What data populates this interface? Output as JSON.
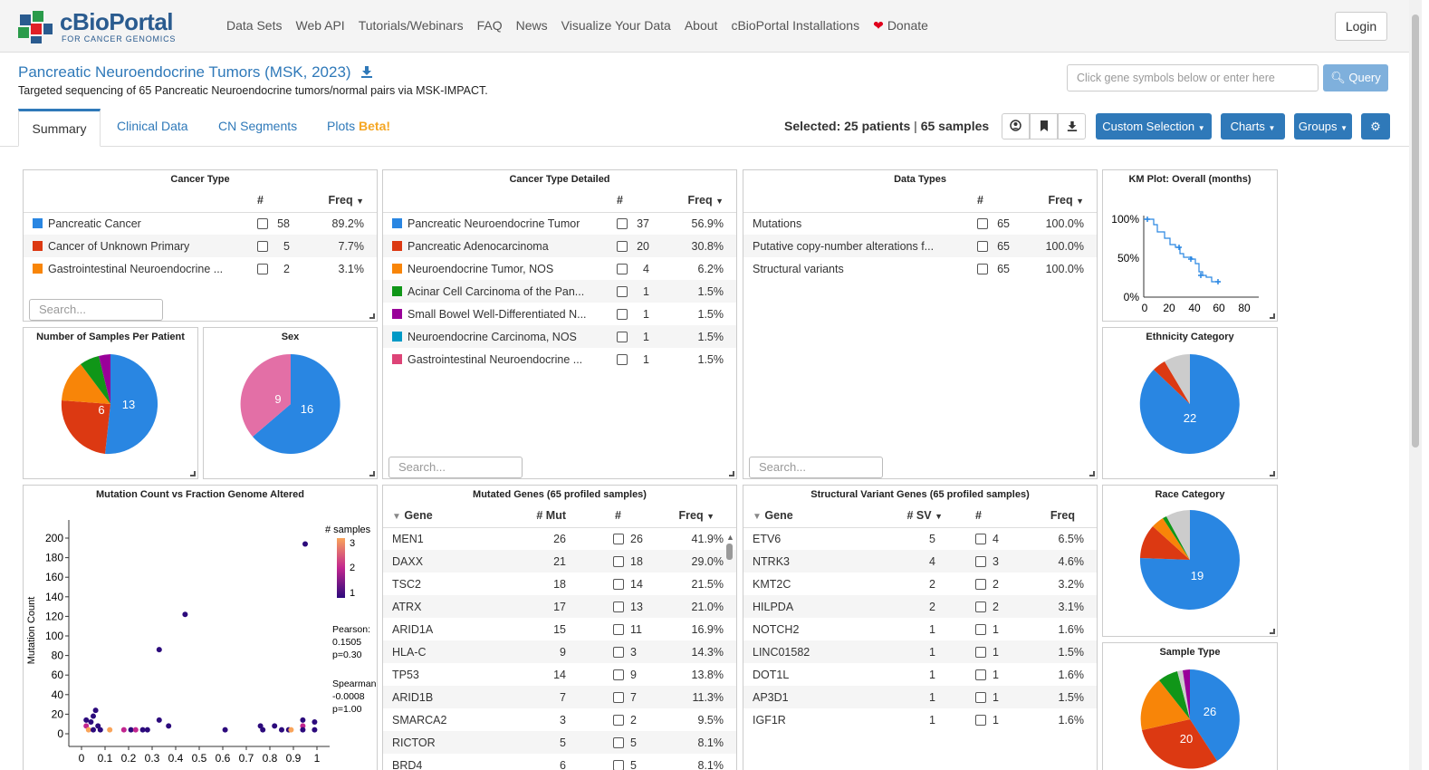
{
  "header": {
    "logo_main": "cBioPortal",
    "logo_sub": "FOR CANCER GENOMICS",
    "nav": [
      "Data Sets",
      "Web API",
      "Tutorials/Webinars",
      "FAQ",
      "News",
      "Visualize Your Data",
      "About",
      "cBioPortal Installations",
      "Donate"
    ],
    "login": "Login"
  },
  "study": {
    "title": "Pancreatic Neuroendocrine Tumors (MSK, 2023)",
    "description": "Targeted sequencing of 65 Pancreatic Neuroendocrine tumors/normal pairs via MSK-IMPACT.",
    "query_placeholder": "Click gene symbols below or enter here",
    "query_button": "Query"
  },
  "tabs": {
    "summary": "Summary",
    "clinical": "Clinical Data",
    "cn": "CN Segments",
    "plots": "Plots",
    "beta": "Beta!"
  },
  "selection": {
    "patients": "Selected: 25 patients",
    "sep": "|",
    "samples": "65 samples"
  },
  "buttons": {
    "custom": "Custom Selection",
    "charts": "Charts",
    "groups": "Groups"
  },
  "colors": {
    "blue": "#2986e2",
    "red": "#dc3912",
    "orange": "#f88508",
    "green": "#109618",
    "purple": "#990099",
    "teal": "#0099c6",
    "pink": "#dd4477",
    "grey": "#cccccc",
    "sexpink": "#e36fa6",
    "link": "#2f79b9"
  },
  "cancer_type": {
    "title": "Cancer Type",
    "col_n": "#",
    "col_freq": "Freq",
    "rows": [
      {
        "label": "Pancreatic Cancer",
        "n": "58",
        "freq": "89.2%",
        "color": "#2986e2"
      },
      {
        "label": "Cancer of Unknown Primary",
        "n": "5",
        "freq": "7.7%",
        "color": "#dc3912"
      },
      {
        "label": "Gastrointestinal Neuroendocrine ...",
        "n": "2",
        "freq": "3.1%",
        "color": "#f88508"
      }
    ],
    "search": "Search..."
  },
  "cancer_type_detailed": {
    "title": "Cancer Type Detailed",
    "col_n": "#",
    "col_freq": "Freq",
    "rows": [
      {
        "label": "Pancreatic Neuroendocrine Tumor",
        "n": "37",
        "freq": "56.9%",
        "color": "#2986e2"
      },
      {
        "label": "Pancreatic Adenocarcinoma",
        "n": "20",
        "freq": "30.8%",
        "color": "#dc3912"
      },
      {
        "label": "Neuroendocrine Tumor, NOS",
        "n": "4",
        "freq": "6.2%",
        "color": "#f88508"
      },
      {
        "label": "Acinar Cell Carcinoma of the Pan...",
        "n": "1",
        "freq": "1.5%",
        "color": "#109618"
      },
      {
        "label": "Small Bowel Well-Differentiated N...",
        "n": "1",
        "freq": "1.5%",
        "color": "#990099"
      },
      {
        "label": "Neuroendocrine Carcinoma, NOS",
        "n": "1",
        "freq": "1.5%",
        "color": "#0099c6"
      },
      {
        "label": "Gastrointestinal Neuroendocrine ...",
        "n": "1",
        "freq": "1.5%",
        "color": "#dd4477"
      }
    ],
    "search": "Search..."
  },
  "data_types": {
    "title": "Data Types",
    "col_n": "#",
    "col_freq": "Freq",
    "rows": [
      {
        "label": "Mutations",
        "n": "65",
        "freq": "100.0%"
      },
      {
        "label": "Putative copy-number alterations f...",
        "n": "65",
        "freq": "100.0%"
      },
      {
        "label": "Structural variants",
        "n": "65",
        "freq": "100.0%"
      }
    ],
    "search": "Search..."
  },
  "km": {
    "title": "KM Plot: Overall (months)",
    "y_ticks": [
      "100%",
      "50%",
      "0%"
    ],
    "x_ticks": [
      "0",
      "20",
      "40",
      "60",
      "80"
    ]
  },
  "samples_per_patient": {
    "title": "Number of Samples Per Patient",
    "labels": [
      "13",
      "6"
    ]
  },
  "sex": {
    "title": "Sex",
    "labels": [
      "16",
      "9"
    ]
  },
  "ethnicity": {
    "title": "Ethnicity Category",
    "labels": [
      "22"
    ]
  },
  "race": {
    "title": "Race Category",
    "labels": [
      "19"
    ]
  },
  "sample_type": {
    "title": "Sample Type",
    "labels": [
      "26",
      "20"
    ]
  },
  "scatter": {
    "title": "Mutation Count vs Fraction Genome Altered",
    "ylabel": "Mutation Count",
    "y_ticks": [
      "200",
      "180",
      "160",
      "140",
      "120",
      "100",
      "80",
      "60",
      "40",
      "20",
      "0"
    ],
    "x_ticks": [
      "0",
      "0.1",
      "0.2",
      "0.3",
      "0.4",
      "0.5",
      "0.6",
      "0.7",
      "0.8",
      "0.9",
      "1"
    ],
    "legend_title": "# samples",
    "legend_ticks": [
      "3",
      "2",
      "1"
    ],
    "pearson_label": "Pearson:",
    "pearson_r": "0.1505",
    "pearson_p": "p=0.30",
    "spearman_label": "Spearman:",
    "spearman_r": "-0.0008",
    "spearman_p": "p=1.00"
  },
  "chart_data": {
    "type": "scatter",
    "title": "Mutation Count vs Fraction Genome Altered",
    "xlabel": "",
    "ylabel": "Mutation Count",
    "xlim": [
      0,
      1
    ],
    "ylim": [
      0,
      200
    ],
    "points": [
      {
        "x": 0.02,
        "y": 8,
        "n": 2
      },
      {
        "x": 0.02,
        "y": 14,
        "n": 1
      },
      {
        "x": 0.03,
        "y": 4,
        "n": 3
      },
      {
        "x": 0.04,
        "y": 12,
        "n": 1
      },
      {
        "x": 0.05,
        "y": 4,
        "n": 1
      },
      {
        "x": 0.05,
        "y": 18,
        "n": 1
      },
      {
        "x": 0.06,
        "y": 24,
        "n": 1
      },
      {
        "x": 0.07,
        "y": 8,
        "n": 1
      },
      {
        "x": 0.08,
        "y": 4,
        "n": 1
      },
      {
        "x": 0.12,
        "y": 4,
        "n": 3
      },
      {
        "x": 0.18,
        "y": 4,
        "n": 2
      },
      {
        "x": 0.21,
        "y": 4,
        "n": 1
      },
      {
        "x": 0.23,
        "y": 4,
        "n": 2
      },
      {
        "x": 0.26,
        "y": 4,
        "n": 1
      },
      {
        "x": 0.28,
        "y": 4,
        "n": 1
      },
      {
        "x": 0.33,
        "y": 86,
        "n": 1
      },
      {
        "x": 0.33,
        "y": 14,
        "n": 1
      },
      {
        "x": 0.37,
        "y": 8,
        "n": 1
      },
      {
        "x": 0.44,
        "y": 122,
        "n": 1
      },
      {
        "x": 0.61,
        "y": 4,
        "n": 1
      },
      {
        "x": 0.76,
        "y": 8,
        "n": 1
      },
      {
        "x": 0.77,
        "y": 4,
        "n": 1
      },
      {
        "x": 0.82,
        "y": 8,
        "n": 1
      },
      {
        "x": 0.85,
        "y": 4,
        "n": 1
      },
      {
        "x": 0.88,
        "y": 4,
        "n": 1
      },
      {
        "x": 0.89,
        "y": 4,
        "n": 3
      },
      {
        "x": 0.94,
        "y": 14,
        "n": 1
      },
      {
        "x": 0.94,
        "y": 8,
        "n": 2
      },
      {
        "x": 0.94,
        "y": 4,
        "n": 1
      },
      {
        "x": 0.95,
        "y": 194,
        "n": 1
      },
      {
        "x": 0.99,
        "y": 4,
        "n": 1
      },
      {
        "x": 0.99,
        "y": 12,
        "n": 1
      }
    ]
  },
  "mutated_genes": {
    "title": "Mutated Genes (65 profiled samples)",
    "col_gene": "Gene",
    "col_mut": "# Mut",
    "col_n": "#",
    "col_freq": "Freq",
    "rows": [
      {
        "gene": "MEN1",
        "mut": "26",
        "n": "26",
        "freq": "41.9%"
      },
      {
        "gene": "DAXX",
        "mut": "21",
        "n": "18",
        "freq": "29.0%"
      },
      {
        "gene": "TSC2",
        "mut": "18",
        "n": "14",
        "freq": "21.5%"
      },
      {
        "gene": "ATRX",
        "mut": "17",
        "n": "13",
        "freq": "21.0%"
      },
      {
        "gene": "ARID1A",
        "mut": "15",
        "n": "11",
        "freq": "16.9%"
      },
      {
        "gene": "HLA-C",
        "mut": "9",
        "n": "3",
        "freq": "14.3%"
      },
      {
        "gene": "TP53",
        "mut": "14",
        "n": "9",
        "freq": "13.8%"
      },
      {
        "gene": "ARID1B",
        "mut": "7",
        "n": "7",
        "freq": "11.3%"
      },
      {
        "gene": "SMARCA2",
        "mut": "3",
        "n": "2",
        "freq": "9.5%"
      },
      {
        "gene": "RICTOR",
        "mut": "5",
        "n": "5",
        "freq": "8.1%"
      },
      {
        "gene": "BRD4",
        "mut": "6",
        "n": "5",
        "freq": "8.1%"
      }
    ]
  },
  "sv_genes": {
    "title": "Structural Variant Genes (65 profiled samples)",
    "col_gene": "Gene",
    "col_sv": "# SV",
    "col_n": "#",
    "col_freq": "Freq",
    "rows": [
      {
        "gene": "ETV6",
        "sv": "5",
        "n": "4",
        "freq": "6.5%"
      },
      {
        "gene": "NTRK3",
        "sv": "4",
        "n": "3",
        "freq": "4.6%"
      },
      {
        "gene": "KMT2C",
        "sv": "2",
        "n": "2",
        "freq": "3.2%"
      },
      {
        "gene": "HILPDA",
        "sv": "2",
        "n": "2",
        "freq": "3.1%"
      },
      {
        "gene": "NOTCH2",
        "sv": "1",
        "n": "1",
        "freq": "1.6%"
      },
      {
        "gene": "LINC01582",
        "sv": "1",
        "n": "1",
        "freq": "1.5%"
      },
      {
        "gene": "DOT1L",
        "sv": "1",
        "n": "1",
        "freq": "1.6%"
      },
      {
        "gene": "AP3D1",
        "sv": "1",
        "n": "1",
        "freq": "1.5%"
      },
      {
        "gene": "IGF1R",
        "sv": "1",
        "n": "1",
        "freq": "1.6%"
      }
    ]
  }
}
